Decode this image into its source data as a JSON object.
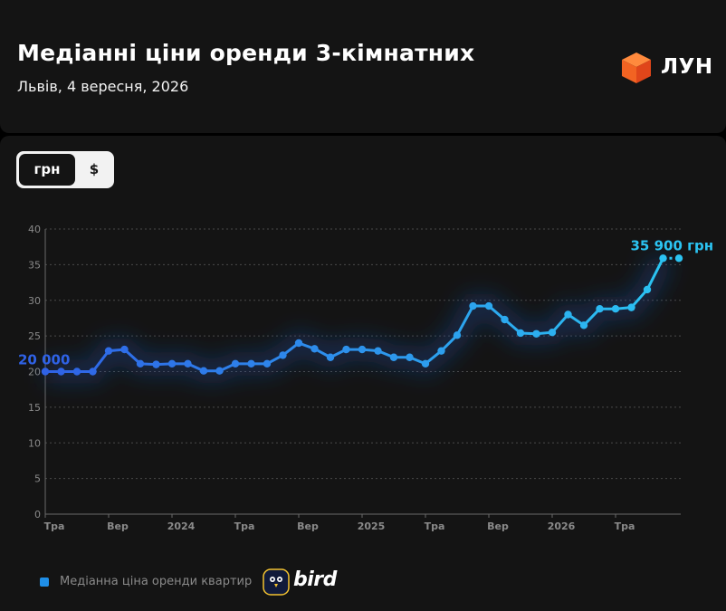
{
  "header": {
    "title": "Медіанні ціни оренди 3-кімнатних",
    "subtitle": "Львів, 4 вересня, 2026",
    "logo_text": "ЛУН"
  },
  "currency_toggle": {
    "options": [
      "грн",
      "$"
    ],
    "selected": "грн"
  },
  "legend": {
    "label": "Медіанна ціна оренди квартир",
    "brand": "bird"
  },
  "colors": {
    "line_start": "#2f62e6",
    "line_end": "#2bc4f2",
    "grid": "#4a4a4a",
    "axis_text": "#8a8a8a"
  },
  "chart_data": {
    "type": "line",
    "title": "",
    "xlabel": "",
    "ylabel": "",
    "ylim": [
      0,
      40
    ],
    "yticks": [
      0,
      5,
      10,
      15,
      20,
      25,
      30,
      35,
      40
    ],
    "grid": true,
    "x_tick_labels": [
      {
        "index": 0,
        "label": "Тра"
      },
      {
        "index": 4,
        "label": "Вер"
      },
      {
        "index": 8,
        "label": "2024"
      },
      {
        "index": 12,
        "label": "Тра"
      },
      {
        "index": 16,
        "label": "Вер"
      },
      {
        "index": 20,
        "label": "2025"
      },
      {
        "index": 24,
        "label": "Тра"
      },
      {
        "index": 28,
        "label": "Вер"
      },
      {
        "index": 32,
        "label": "2026"
      },
      {
        "index": 36,
        "label": "Тра"
      }
    ],
    "series": [
      {
        "values": [
          20,
          20,
          20,
          20,
          22.9,
          23.1,
          21.1,
          21,
          21.1,
          21.1,
          20.1,
          20.1,
          21.1,
          21.1,
          21.1,
          22.3,
          24,
          23.2,
          22,
          23.1,
          23.1,
          22.9,
          22,
          22,
          21.1,
          22.9,
          25.1,
          29.2,
          29.2,
          27.3,
          25.4,
          25.3,
          25.5,
          28,
          26.5,
          28.8,
          28.8,
          29,
          31.5,
          35.9,
          35.9
        ]
      }
    ],
    "annotations": [
      {
        "index": 0,
        "text": "20 000"
      },
      {
        "index": 39,
        "text": "35 900 грн"
      }
    ]
  }
}
